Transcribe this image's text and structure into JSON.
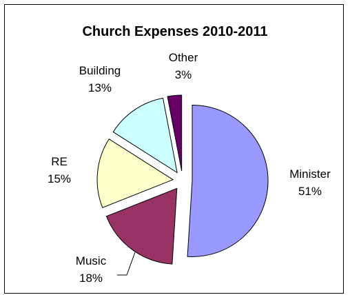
{
  "chart_data": {
    "type": "pie",
    "title": "Church Expenses 2010-2011",
    "exploded": true,
    "slices": [
      {
        "name": "Minister",
        "percent_label": "51%",
        "value": 51,
        "color": "#9999ff"
      },
      {
        "name": "Music",
        "percent_label": "18%",
        "value": 18,
        "color": "#993366"
      },
      {
        "name": "RE",
        "percent_label": "15%",
        "value": 15,
        "color": "#ffffcc"
      },
      {
        "name": "Building",
        "percent_label": "13%",
        "value": 13,
        "color": "#ccffff"
      },
      {
        "name": "Other",
        "percent_label": "3%",
        "value": 3,
        "color": "#660066"
      }
    ]
  }
}
